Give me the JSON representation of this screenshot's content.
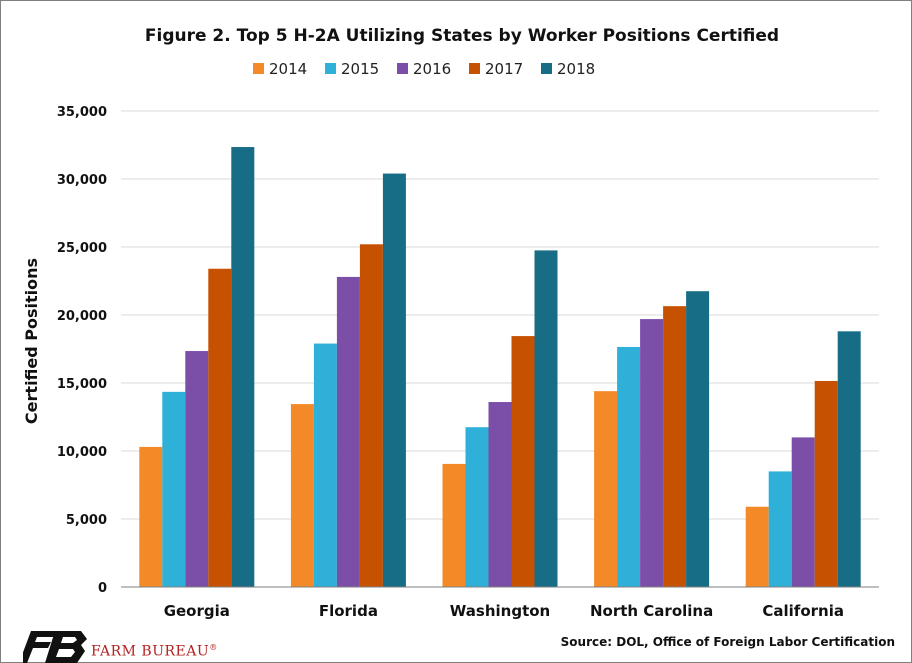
{
  "colors": {
    "2014": "#f38a27",
    "2015": "#2fb0d8",
    "2016": "#7b4ea8",
    "2017": "#c65100",
    "2018": "#176c86",
    "grid": "#d9d9d9",
    "brand": "#b22222"
  },
  "chart_data": {
    "type": "bar",
    "title": "Figure 2. Top 5 H-2A Utilizing States by Worker Positions Certified",
    "ylabel": "Certified Positions",
    "xlabel": "",
    "ylim": [
      0,
      35000
    ],
    "yticks": [
      0,
      5000,
      10000,
      15000,
      20000,
      25000,
      30000,
      35000
    ],
    "ytick_labels": [
      "0",
      "5,000",
      "10,000",
      "15,000",
      "20,000",
      "25,000",
      "30,000",
      "35,000"
    ],
    "grid": true,
    "legend_position": "top",
    "categories": [
      "Georgia",
      "Florida",
      "Washington",
      "North Carolina",
      "California"
    ],
    "series": [
      {
        "name": "2014",
        "values": [
          10300,
          13450,
          9050,
          14400,
          5900
        ]
      },
      {
        "name": "2015",
        "values": [
          14350,
          17900,
          11750,
          17650,
          8500
        ]
      },
      {
        "name": "2016",
        "values": [
          17350,
          22800,
          13600,
          19700,
          11000
        ]
      },
      {
        "name": "2017",
        "values": [
          23400,
          25200,
          18450,
          20650,
          15150
        ]
      },
      {
        "name": "2018",
        "values": [
          32350,
          30400,
          24750,
          21750,
          18800
        ]
      }
    ]
  },
  "footer": {
    "brand": "FARM BUREAU",
    "brand_mark": "®",
    "source": "Source: DOL, Office of Foreign Labor Certification"
  }
}
